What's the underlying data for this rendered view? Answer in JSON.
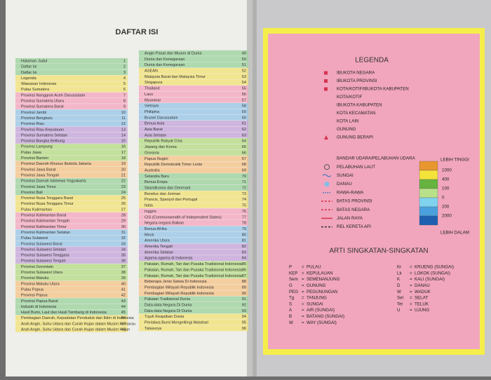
{
  "left_page": {
    "title": "DAFTAR ISI",
    "toc_left": [
      {
        "title": "Halaman Judul",
        "page": 1
      },
      {
        "title": "Daftar Isi",
        "page": 2
      },
      {
        "title": "Daftar Isi",
        "page": 3
      },
      {
        "title": "Legenda",
        "page": 4
      },
      {
        "title": "Wawasan Indonesia",
        "page": 5
      },
      {
        "title": "Pulau Sumatera",
        "page": 6
      },
      {
        "title": "Provinsi Nanggroe Aceh Darussalam",
        "page": 7
      },
      {
        "title": "Provinsi Sumatera Utara",
        "page": 8
      },
      {
        "title": "Provinsi Sumatera Barat",
        "page": 9
      },
      {
        "title": "Provinsi Jambi",
        "page": 10
      },
      {
        "title": "Provinsi Bengkulu",
        "page": 11
      },
      {
        "title": "Provinsi Riau",
        "page": 12
      },
      {
        "title": "Provinsi Riau Kepulauan",
        "page": 13
      },
      {
        "title": "Provinsi Sumatera Selatan",
        "page": 14
      },
      {
        "title": "Provinsi Bangka Belitung",
        "page": 15
      },
      {
        "title": "Provinsi Lampung",
        "page": 16
      },
      {
        "title": "Pulau Jawa",
        "page": 17
      },
      {
        "title": "Provinsi Banten",
        "page": 18
      },
      {
        "title": "Provinsi Daerah Khusus Ibukota Jakarta",
        "page": 19
      },
      {
        "title": "Provinsi Jawa Barat",
        "page": 20
      },
      {
        "title": "Provinsi Jawa Tengah",
        "page": 21
      },
      {
        "title": "Provinsi Daerah Istimewa Yogyakarta",
        "page": 22
      },
      {
        "title": "Provinsi Jawa Timur",
        "page": 23
      },
      {
        "title": "Provinsi Bali",
        "page": 24
      },
      {
        "title": "Provinsi Nusa Tenggara Barat",
        "page": 25
      },
      {
        "title": "Provinsi Nusa Tenggara Timur",
        "page": 26
      },
      {
        "title": "Pulau Kalimantan",
        "page": 27
      },
      {
        "title": "Provinsi Kalimantan Barat",
        "page": 28
      },
      {
        "title": "Provinsi Kalimantan Tengah",
        "page": 29
      },
      {
        "title": "Provinsi Kalimantan Timur",
        "page": 30
      },
      {
        "title": "Provinsi Kalimantan Selatan",
        "page": 31
      },
      {
        "title": "Pulau Sulawesi",
        "page": 32
      },
      {
        "title": "Provinsi Sulawesi Barat",
        "page": 33
      },
      {
        "title": "Provinsi Sulawesi Selatan",
        "page": 34
      },
      {
        "title": "Provinsi Sulawesi Tenggara",
        "page": 35
      },
      {
        "title": "Provinsi Sulawesi Tengah",
        "page": 36
      },
      {
        "title": "Provinsi Gorontalo",
        "page": 37
      },
      {
        "title": "Provinsi Sulawesi Utara",
        "page": 38
      },
      {
        "title": "Provinsi Maluku",
        "page": 39
      },
      {
        "title": "Provinsi Maluku Utara",
        "page": 40
      },
      {
        "title": "Pulau Papua",
        "page": 41
      },
      {
        "title": "Provinsi Papua",
        "page": 42
      },
      {
        "title": "Provinsi Papua Barat",
        "page": 43
      },
      {
        "title": "Industri di Indonesia",
        "page": 44
      },
      {
        "title": "Hasil Bumi, Laut dan Hasil Tambang di Indonesia",
        "page": 45
      },
      {
        "title": "Pembagian Daerah, Kepadatan Penduduk dan Iklim di Indonesia",
        "page": 46
      },
      {
        "title": "Arah Angin, Suhu Udara dan Curah Hujan dalam Musim Kemarau",
        "page": 47
      },
      {
        "title": "Arah Angin, Suhu Udara dan Curah Hujan dalam Musim Hujan",
        "page": 48
      }
    ],
    "toc_right": [
      {
        "title": "Angin Pasat dan Muson di Dunia",
        "page": 49
      },
      {
        "title": "Dunia dan Kenegaraan",
        "page": 50
      },
      {
        "title": "Dunia dan Kenegaraan",
        "page": 51
      },
      {
        "title": "ASEAN",
        "page": 52
      },
      {
        "title": "Malaysia Barat dan Malaysia Timur",
        "page": 53
      },
      {
        "title": "Singapura",
        "page": 54
      },
      {
        "title": "Thailand",
        "page": 55
      },
      {
        "title": "Laos",
        "page": 56
      },
      {
        "title": "Myanmar",
        "page": 57
      },
      {
        "title": "Vietnam",
        "page": 58
      },
      {
        "title": "Philipina",
        "page": 59
      },
      {
        "title": "Brunei Darussalam",
        "page": 60
      },
      {
        "title": "Benua Asia",
        "page": 61
      },
      {
        "title": "Asia Barat",
        "page": 62
      },
      {
        "title": "Asia Selatan",
        "page": 63
      },
      {
        "title": "Republik Rakyat Cina",
        "page": 64
      },
      {
        "title": "Jepang dan Korea",
        "page": 65
      },
      {
        "title": "Oceania",
        "page": 66
      },
      {
        "title": "Papua Nugini",
        "page": 67
      },
      {
        "title": "Republik Demokratik Timor Leste",
        "page": 68
      },
      {
        "title": "Australia",
        "page": 69
      },
      {
        "title": "Selandia Baru",
        "page": 70
      },
      {
        "title": "Benua Eropa",
        "page": 71
      },
      {
        "title": "Skandinavia dan Denmark",
        "page": 72
      },
      {
        "title": "Benelux dan Jerman",
        "page": 73
      },
      {
        "title": "Prancis, Spanyol dan Portugal",
        "page": 74
      },
      {
        "title": "Italia",
        "page": 75
      },
      {
        "title": "Inggris",
        "page": 76
      },
      {
        "title": "CIS (Commonwealth of Independent States)",
        "page": 77
      },
      {
        "title": "Negara-negara Balkan",
        "page": 78
      },
      {
        "title": "Benua Afrika",
        "page": 79
      },
      {
        "title": "Mesir",
        "page": 80
      },
      {
        "title": "Amerika Utara",
        "page": 81
      },
      {
        "title": "Amerika Tengah",
        "page": 82
      },
      {
        "title": "Amerika Selatan",
        "page": 83
      },
      {
        "title": "Agama-agama di Indonesia",
        "page": 84
      },
      {
        "title": "Pakaian, Rumah, Tari dan Pusaka Tradisional Indonesia",
        "page": 85
      },
      {
        "title": "Pakaian, Rumah, Tari dan Pusaka Tradisional Indonesia",
        "page": 86
      },
      {
        "title": "Pakaian, Rumah, Tari dan Pusaka Tradisional Indonesia",
        "page": 87
      },
      {
        "title": "Beberapa Jenis Satwa Di Indonesia",
        "page": 88
      },
      {
        "title": "Pembagian Wilayah Republik Indonesia",
        "page": 89
      },
      {
        "title": "Pembagian Wilayah Republik Indonesia",
        "page": 90
      },
      {
        "title": "Pakaian Tradisional Dunia",
        "page": 91
      },
      {
        "title": "Data-data Negara Di Dunia",
        "page": 92
      },
      {
        "title": "Data-data Negara Di Dunia",
        "page": 93
      },
      {
        "title": "Tujuh Keajaiban Dunia",
        "page": 94
      },
      {
        "title": "Peristiwa Bumi Mengelilingi Matahari",
        "page": 95
      },
      {
        "title": "Tatasurya",
        "page": 96
      }
    ]
  },
  "right_page": {
    "legend_title": "LEGENDA",
    "symbols": [
      "IBUKOTA NEGARA",
      "IBUKOTA PROVINSI",
      "KOTA/KOTIF/IBUKOTA KABUPATEN",
      "KOTA/KOTIF",
      "IBUKOTA KABUPATEN",
      "KOTA KECAMATAN",
      "KOTA LAIN",
      "GUNUNG",
      "GUNUNG BERAPI"
    ],
    "features": [
      "BANDAR UDARA/PELABUHAN UDARA",
      "PELABUHAN LAUT",
      "SUNGAI",
      "DANAU",
      "RAWA-RAWA",
      "BATAS PROVINSI",
      "BATAS NEGARA",
      "JALAN RAYA",
      "REL KERETA API"
    ],
    "scale_top": "LEBIH TINGGI",
    "scale_values": [
      "1000",
      "400",
      "100",
      "0",
      "200",
      "2000"
    ],
    "scale_bottom": "LEBIH DALAM",
    "abbrev_title": "ARTI SINGKATAN-SINGKATAN",
    "separator": "=",
    "abbrev_left": [
      {
        "code": "P",
        "meaning": "PULAU"
      },
      {
        "code": "KEP",
        "meaning": "KEPULAUAN"
      },
      {
        "code": "Sem",
        "meaning": "SEMENANJUNG"
      },
      {
        "code": "G",
        "meaning": "GUNUNG"
      },
      {
        "code": "PEG",
        "meaning": "PEGUNUNGAN"
      },
      {
        "code": "Tg",
        "meaning": "TANJUNG"
      },
      {
        "code": "S",
        "meaning": "SUNGAI"
      },
      {
        "code": "A",
        "meaning": "AIR (SUNGAI)"
      },
      {
        "code": "B",
        "meaning": "BATANG (SUNGAI)"
      },
      {
        "code": "W",
        "meaning": "WAY (SUNGAI)"
      }
    ],
    "abbrev_right": [
      {
        "code": "Kr",
        "meaning": "KRUENG (SUNGAI)"
      },
      {
        "code": "Lk",
        "meaning": "LOKOK (SUNGAI)"
      },
      {
        "code": "K",
        "meaning": "KALI (SUNGAI)"
      },
      {
        "code": "D",
        "meaning": "DANAU"
      },
      {
        "code": "W",
        "meaning": "WADUK"
      },
      {
        "code": "Sel",
        "meaning": "SELAT"
      },
      {
        "code": "Tel",
        "meaning": "TELUK"
      },
      {
        "code": "U",
        "meaning": "UJUNG"
      }
    ]
  }
}
